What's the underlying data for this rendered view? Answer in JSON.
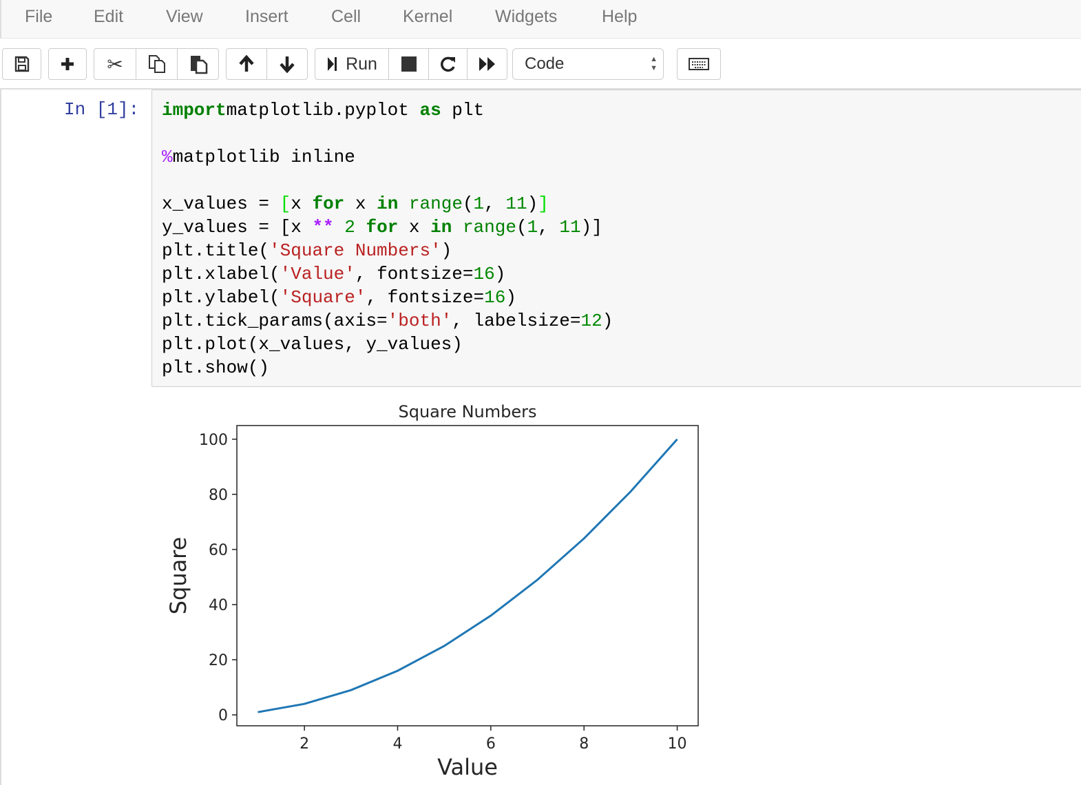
{
  "menu": [
    "File",
    "Edit",
    "View",
    "Insert",
    "Cell",
    "Kernel",
    "Widgets",
    "Help"
  ],
  "toolbar": {
    "save_icon": "floppy-disk-icon",
    "add_icon": "plus-icon",
    "cut_icon": "scissors-icon",
    "copy_icon": "copy-icon",
    "paste_icon": "paste-icon",
    "move_up_icon": "arrow-up-icon",
    "move_down_icon": "arrow-down-icon",
    "run_label": "Run",
    "stop_icon": "stop-icon",
    "restart_icon": "restart-icon",
    "run_all_icon": "fast-forward-icon",
    "cell_type": "Code",
    "keyboard_icon": "keyboard-icon"
  },
  "cell": {
    "prompt": "In [1]:",
    "code_lines": [
      [
        [
          "kw",
          "import"
        ],
        [
          "",
          "matplotlib.pyplot "
        ],
        [
          "kw",
          "as"
        ],
        [
          "",
          " plt"
        ]
      ],
      [],
      [
        [
          "magic",
          "%"
        ],
        [
          "",
          "matplotlib inline"
        ]
      ],
      [],
      [
        [
          "",
          "x_values = "
        ],
        [
          "bm",
          "["
        ],
        [
          "",
          "x "
        ],
        [
          "kw",
          "for"
        ],
        [
          "",
          " x "
        ],
        [
          "kw",
          "in"
        ],
        [
          "",
          " "
        ],
        [
          "bi",
          "range"
        ],
        [
          "",
          "("
        ],
        [
          "num",
          "1"
        ],
        [
          "",
          ", "
        ],
        [
          "num",
          "11"
        ],
        [
          "",
          ")"
        ],
        [
          "bm",
          "]"
        ]
      ],
      [
        [
          "",
          "y_values = [x "
        ],
        [
          "op",
          "**"
        ],
        [
          "",
          " "
        ],
        [
          "num",
          "2"
        ],
        [
          "",
          " "
        ],
        [
          "kw",
          "for"
        ],
        [
          "",
          " x "
        ],
        [
          "kw",
          "in"
        ],
        [
          "",
          " "
        ],
        [
          "bi",
          "range"
        ],
        [
          "",
          "("
        ],
        [
          "num",
          "1"
        ],
        [
          "",
          ", "
        ],
        [
          "num",
          "11"
        ],
        [
          "",
          ")]"
        ]
      ],
      [
        [
          "",
          "plt.title("
        ],
        [
          "str",
          "'Square Numbers'"
        ],
        [
          "",
          ")"
        ]
      ],
      [
        [
          "",
          "plt.xlabel("
        ],
        [
          "str",
          "'Value'"
        ],
        [
          "",
          ", fontsize="
        ],
        [
          "num",
          "16"
        ],
        [
          "",
          ")"
        ]
      ],
      [
        [
          "",
          "plt.ylabel("
        ],
        [
          "str",
          "'Square'"
        ],
        [
          "",
          ", fontsize="
        ],
        [
          "num",
          "16"
        ],
        [
          "",
          ")"
        ]
      ],
      [
        [
          "",
          "plt.tick_params(axis="
        ],
        [
          "str",
          "'both'"
        ],
        [
          "",
          ", labelsize="
        ],
        [
          "num",
          "12"
        ],
        [
          "",
          ")"
        ]
      ],
      [
        [
          "",
          "plt.plot(x_values, y_values)"
        ]
      ],
      [
        [
          "",
          "plt.show()"
        ]
      ]
    ]
  },
  "chart_data": {
    "type": "line",
    "title": "Square Numbers",
    "xlabel": "Value",
    "ylabel": "Square",
    "x": [
      1,
      2,
      3,
      4,
      5,
      6,
      7,
      8,
      9,
      10
    ],
    "series": [
      {
        "values": [
          1,
          4,
          9,
          16,
          25,
          36,
          49,
          64,
          81,
          100
        ],
        "color": "#1f77b4"
      }
    ],
    "xlim": [
      0.55,
      10.45
    ],
    "ylim": [
      -3.95,
      104.95
    ],
    "xticks": [
      2,
      4,
      6,
      8,
      10
    ],
    "yticks": [
      0,
      20,
      40,
      60,
      80,
      100
    ],
    "grid": false
  }
}
